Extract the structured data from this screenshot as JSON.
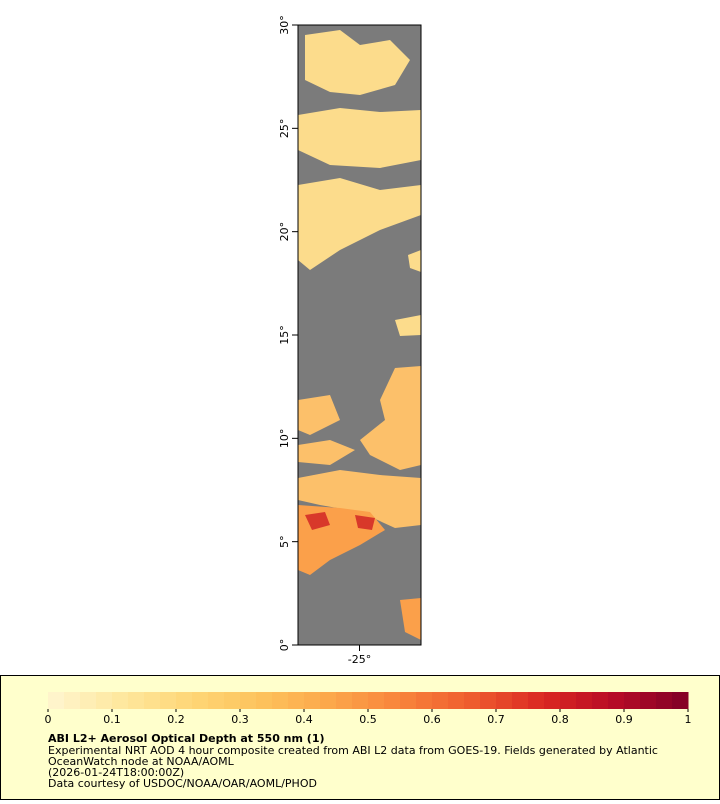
{
  "chart_data": {
    "type": "map",
    "xlim": [
      -28,
      -22
    ],
    "ylim": [
      0,
      30
    ],
    "xticks": [
      {
        "value": -25,
        "label": "-25°"
      }
    ],
    "yticks": [
      {
        "value": 0,
        "label": "0°"
      },
      {
        "value": 5,
        "label": "5°"
      },
      {
        "value": 10,
        "label": "10°"
      },
      {
        "value": 15,
        "label": "15°"
      },
      {
        "value": 20,
        "label": "20°"
      },
      {
        "value": 25,
        "label": "25°"
      },
      {
        "value": 30,
        "label": "30°"
      }
    ],
    "colorbar": {
      "lim": [
        0,
        1
      ],
      "ticks": [
        0,
        0.1,
        0.2,
        0.3,
        0.4,
        0.5,
        0.6,
        0.7,
        0.8,
        0.9,
        1
      ],
      "colors": [
        "#fff6d0",
        "#fee8a0",
        "#fed777",
        "#fdc25c",
        "#fca64a",
        "#f8823b",
        "#ee5a2e",
        "#d92622",
        "#b50b26",
        "#800026"
      ]
    },
    "title": "ABI L2+ Aerosol Optical Depth at 550 nm (1)",
    "notes": [
      "Experimental NRT AOD 4 hour composite created from ABI L2 data from GOES-19. Fields generated by Atlantic",
      "OceanWatch node at NOAA/AOML",
      "(2026-01-24T18:00:00Z)",
      "Data courtesy of USDOC/NOAA/OAR/AOML/PHOD"
    ]
  }
}
